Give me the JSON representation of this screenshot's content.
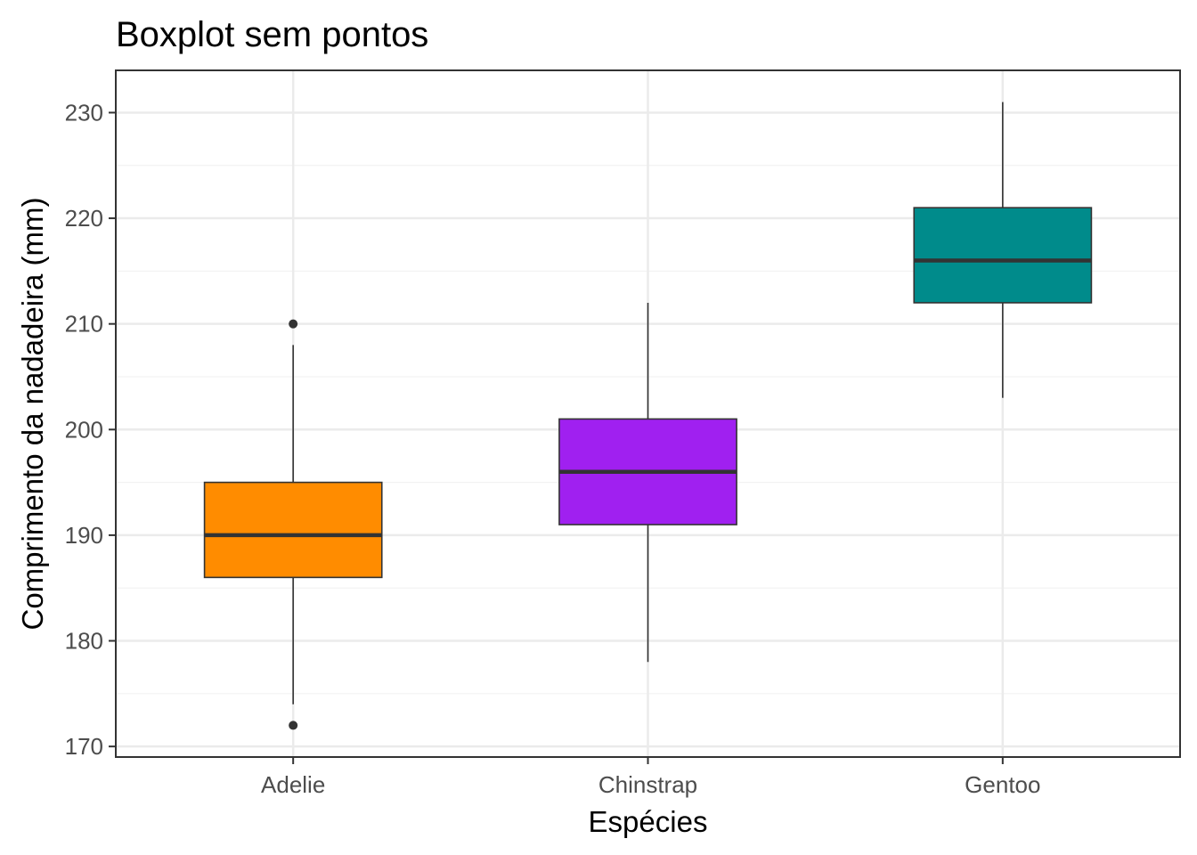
{
  "chart_data": {
    "type": "boxplot",
    "title": "Boxplot sem pontos",
    "xlabel": "Espécies",
    "ylabel": "Comprimento da nadadeira (mm)",
    "categories": [
      "Adelie",
      "Chinstrap",
      "Gentoo"
    ],
    "yticks": [
      170,
      180,
      190,
      200,
      210,
      220,
      230
    ],
    "ylim": [
      169,
      234
    ],
    "grid": true,
    "boxes": [
      {
        "category": "Adelie",
        "whisker_low": 174,
        "q1": 186,
        "median": 190,
        "q3": 195,
        "whisker_high": 208,
        "outliers": [
          172,
          210
        ],
        "color": "#ff8c00"
      },
      {
        "category": "Chinstrap",
        "whisker_low": 178,
        "q1": 191,
        "median": 196,
        "q3": 201,
        "whisker_high": 212,
        "outliers": [],
        "color": "#a020f0"
      },
      {
        "category": "Gentoo",
        "whisker_low": 203,
        "q1": 212,
        "median": 216,
        "q3": 221,
        "whisker_high": 231,
        "outliers": [],
        "color": "#008b8b"
      }
    ]
  }
}
